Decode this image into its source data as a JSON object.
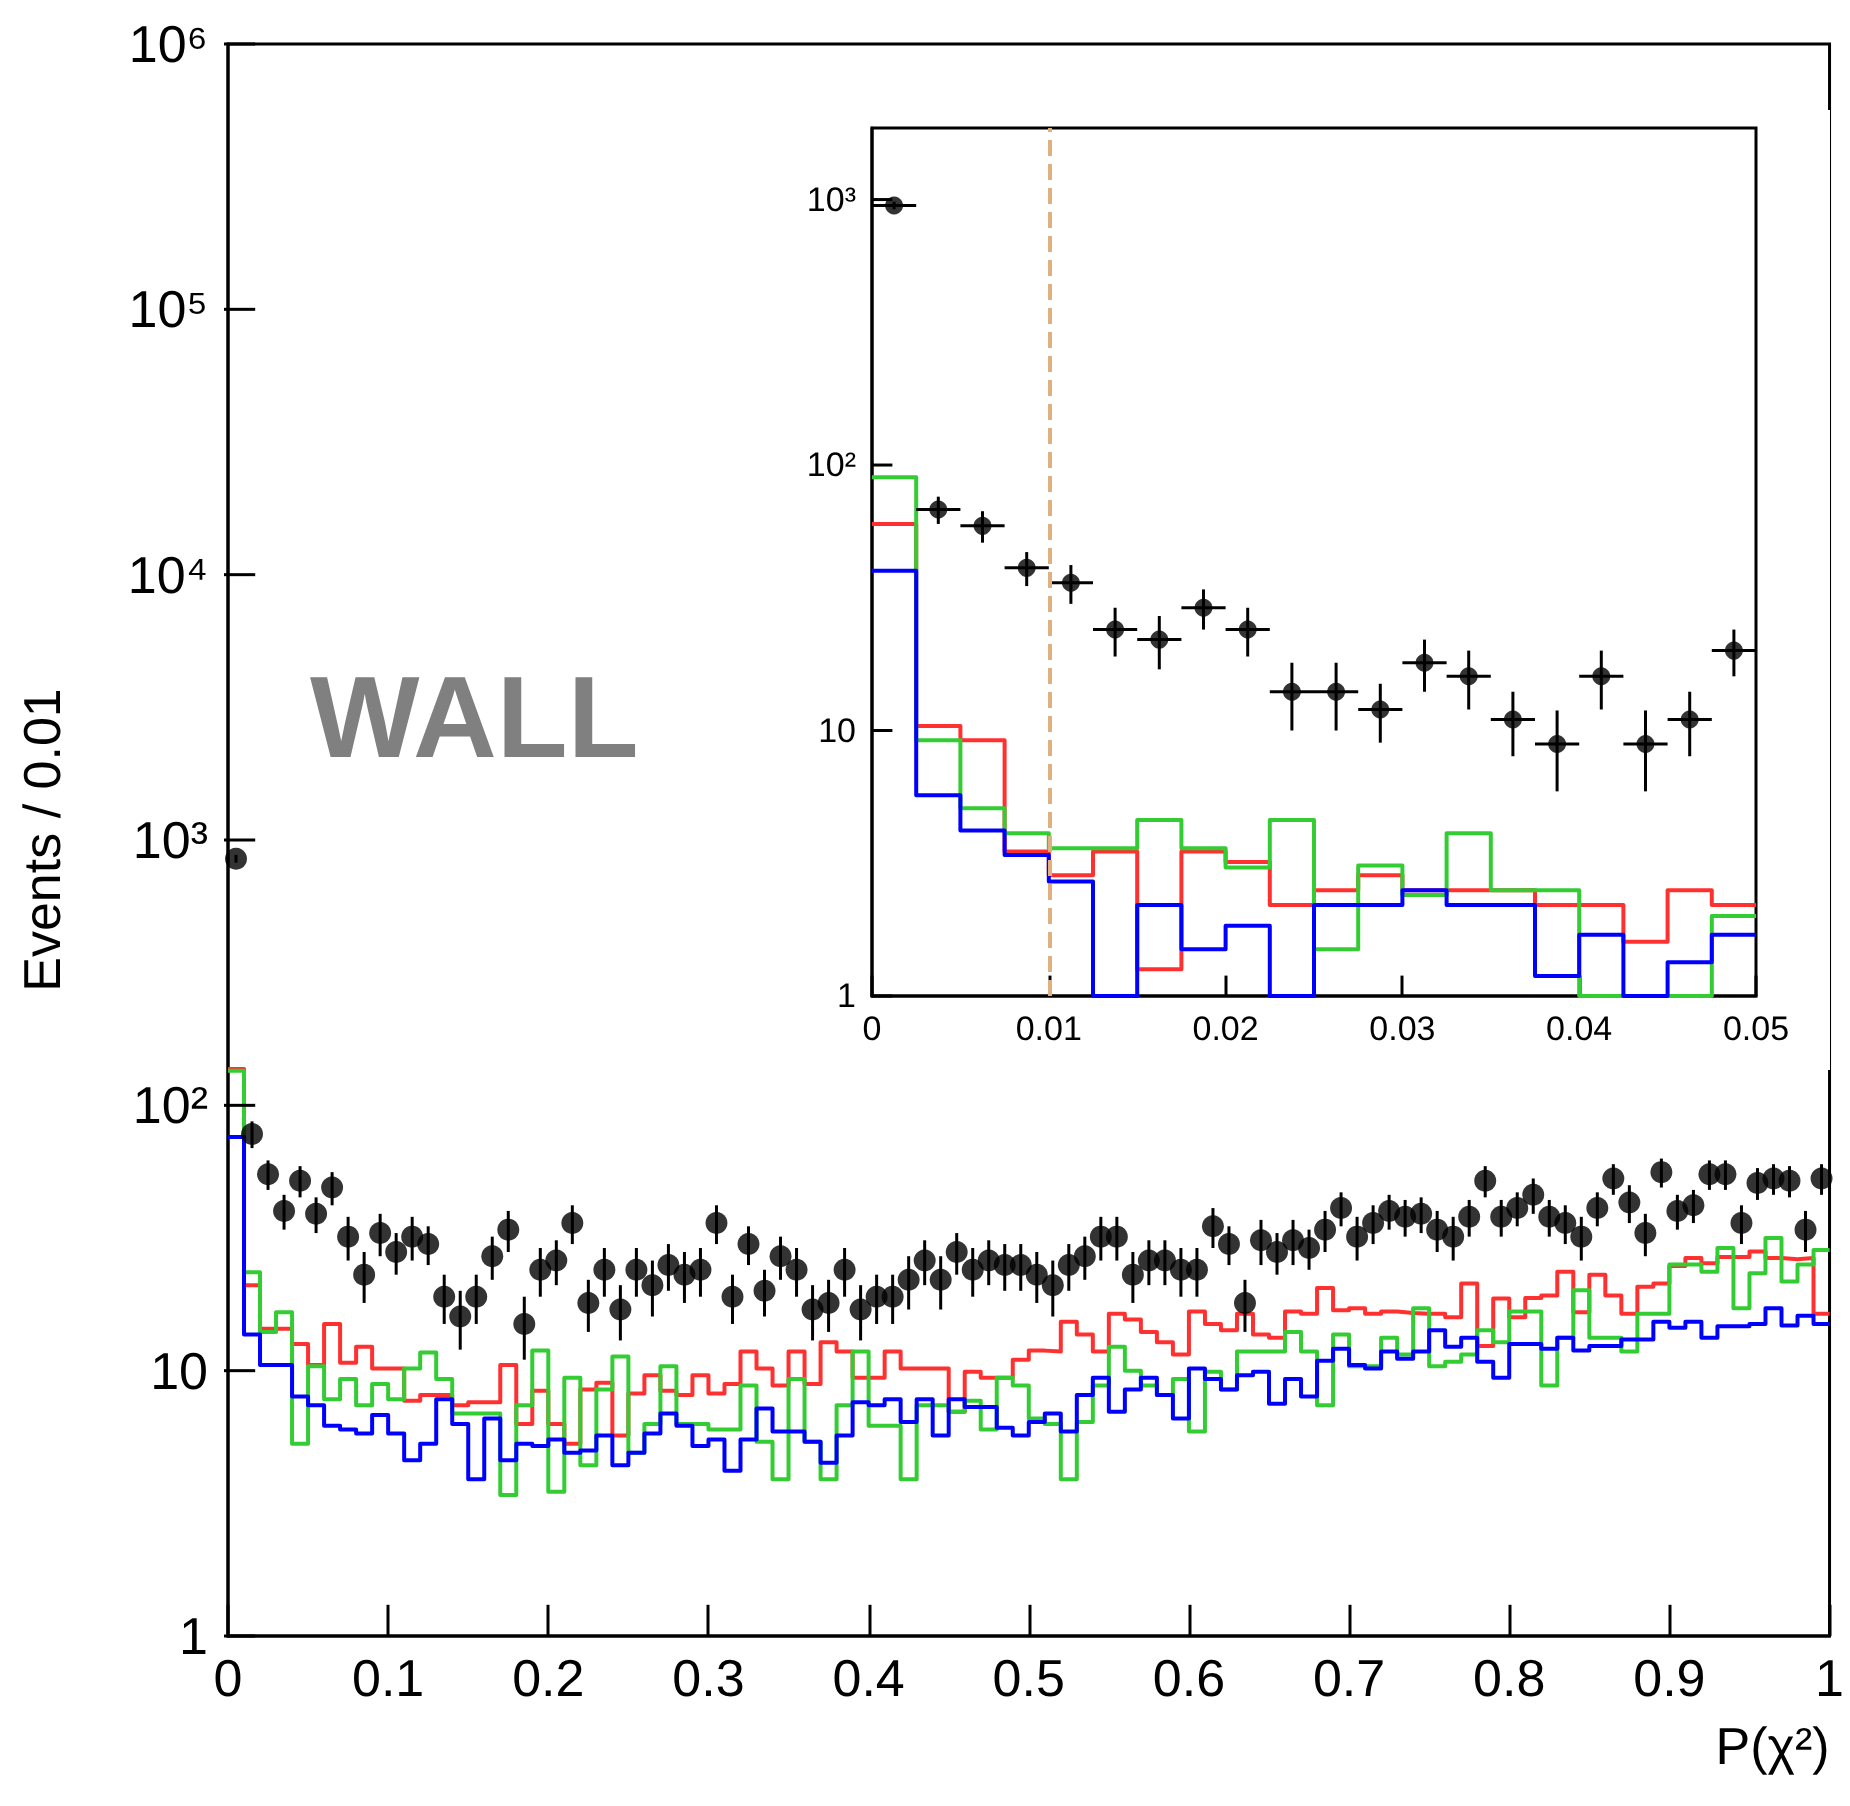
{
  "chart_data": [
    {
      "type": "histogram",
      "xlabel": "P(χ²)",
      "ylabel": "Events / 0.01",
      "log": "y",
      "annotations": [
        "WALL"
      ],
      "xlim": [
        0,
        1
      ],
      "xticks": [
        0,
        0.1,
        0.2,
        0.3,
        0.4,
        0.5,
        0.6,
        0.7,
        0.8,
        0.9,
        1
      ],
      "ylim": [
        1,
        1000000
      ],
      "yticks": [
        {
          "value": 1,
          "label": "1"
        },
        {
          "value": 10,
          "label": "10"
        },
        {
          "value": 100,
          "label": "10²"
        },
        {
          "value": 1000,
          "label": "10³"
        },
        {
          "value": 10000,
          "label": "10⁴"
        },
        {
          "value": 100000,
          "label": "10⁵"
        },
        {
          "value": 1000000,
          "label": "10⁶"
        }
      ],
      "bins": [
        0,
        0.01,
        0.02,
        0.03,
        0.04,
        0.05,
        0.06,
        0.07,
        0.08,
        0.09,
        0.1,
        0.11,
        0.12,
        0.13,
        0.14,
        0.15,
        0.16,
        0.17,
        0.18,
        0.19,
        0.2,
        0.21,
        0.22,
        0.23,
        0.24,
        0.25,
        0.26,
        0.27,
        0.28,
        0.29,
        0.3,
        0.31,
        0.32,
        0.33,
        0.34,
        0.35,
        0.36,
        0.37,
        0.38,
        0.39,
        0.4,
        0.41,
        0.42,
        0.43,
        0.44,
        0.45,
        0.46,
        0.47,
        0.48,
        0.49,
        0.5,
        0.51,
        0.52,
        0.53,
        0.54,
        0.55,
        0.56,
        0.57,
        0.58,
        0.59,
        0.6,
        0.61,
        0.62,
        0.63,
        0.64,
        0.65,
        0.66,
        0.67,
        0.68,
        0.69,
        0.7,
        0.71,
        0.72,
        0.73,
        0.74,
        0.75,
        0.76,
        0.77,
        0.78,
        0.79,
        0.8,
        0.81,
        0.82,
        0.83,
        0.84,
        0.85,
        0.86,
        0.87,
        0.88,
        0.89,
        0.9,
        0.91,
        0.92,
        0.93,
        0.94,
        0.95,
        0.96,
        0.97,
        0.98,
        0.99,
        1
      ],
      "series": [
        {
          "color": "#ff3030",
          "values": [
            137,
            21,
            14.4,
            14.4,
            12.6,
            10.5,
            15,
            10.7,
            12.3,
            10.2,
            10.2,
            7.7,
            8.1,
            8.1,
            7.4,
            7.6,
            7.6,
            10.5,
            6.3,
            8.4,
            6.3,
            5.3,
            8.5,
            9.0,
            5.7,
            8.2,
            9.6,
            8.4,
            8.1,
            9.6,
            8.2,
            8.9,
            11.8,
            10.2,
            8.8,
            11.8,
            8.9,
            12.8,
            11.8,
            9.4,
            9.4,
            11.8,
            10.2,
            10.2,
            10.2,
            7.0,
            9.9,
            9.4,
            9.4,
            11.0,
            11.9,
            11.8,
            15.3,
            13.7,
            11.8,
            16.4,
            15.6,
            14.0,
            12.8,
            11.5,
            16.7,
            15.0,
            14.2,
            16.4,
            13.7,
            13.3,
            16.7,
            16.4,
            20.5,
            16.9,
            17.2,
            16.4,
            16.7,
            16.5,
            16.4,
            16.4,
            15.9,
            21.3,
            12.4,
            18.7,
            15.9,
            18.8,
            19.2,
            23.6,
            16.6,
            23.0,
            19.2,
            16.4,
            20.7,
            21.3,
            24.8,
            26.6,
            25.4,
            26.8,
            26.8,
            28.1,
            26.6,
            26.3,
            26.6,
            16.4
          ]
        },
        {
          "color": "#33cc33",
          "values": [
            135,
            23.5,
            14,
            16.6,
            5.3,
            10.4,
            7.8,
            9.3,
            7.4,
            8.9,
            7.8,
            10.2,
            11.7,
            9.3,
            6.9,
            6.9,
            6.9,
            3.4,
            7.4,
            11.9,
            3.5,
            9.4,
            4.4,
            8.5,
            11.3,
            4.9,
            6.3,
            10.4,
            6.3,
            6.3,
            6.0,
            6.0,
            8.8,
            5.4,
            3.9,
            9.3,
            5.4,
            3.9,
            7.4,
            11.8,
            6.2,
            6.2,
            3.9,
            7.4,
            7.4,
            7.0,
            7.7,
            6.0,
            9.4,
            8.8,
            6.6,
            6.3,
            3.9,
            6.4,
            8.8,
            12.3,
            10.0,
            8.8,
            8.1,
            9.3,
            5.9,
            9.9,
            8.5,
            11.8,
            11.8,
            11.8,
            14.0,
            11.8,
            7.4,
            13.7,
            10.4,
            10.4,
            13.3,
            11.5,
            17.2,
            10.4,
            10.8,
            11.5,
            14.2,
            12.8,
            16.7,
            16.7,
            8.8,
            13.3,
            20.1,
            13.3,
            13.3,
            11.8,
            16.4,
            16.4,
            25.1,
            25.1,
            23.6,
            29,
            17.2,
            23.3,
            31.6,
            21.7,
            25.1,
            28.5
          ]
        },
        {
          "color": "#0000ff",
          "values": [
            76,
            13.7,
            10.5,
            10.5,
            8,
            7.4,
            6.2,
            6.0,
            5.8,
            6.8,
            5.8,
            4.6,
            5.3,
            7.8,
            6.3,
            3.9,
            6.6,
            4.6,
            5.3,
            5.2,
            5.5,
            4.9,
            5.0,
            5.7,
            4.4,
            4.9,
            5.8,
            6.9,
            6.2,
            5.2,
            5.5,
            4.2,
            5.5,
            7.2,
            5.9,
            5.9,
            5.4,
            4.5,
            5.7,
            7.6,
            7.4,
            7.8,
            6.4,
            7.8,
            5.7,
            7.8,
            7.3,
            7.3,
            6.1,
            5.7,
            6.4,
            6.9,
            5.9,
            8.1,
            9.4,
            7.0,
            8.5,
            9.4,
            8.1,
            6.6,
            10.2,
            9.3,
            8.5,
            9.6,
            9.9,
            7.5,
            9.3,
            8.0,
            10.9,
            12.1,
            10.5,
            10.2,
            11.8,
            11.1,
            11.8,
            14.2,
            12.3,
            13.3,
            10.8,
            9.4,
            12.6,
            12.6,
            12.1,
            13.3,
            11.9,
            12.4,
            12.4,
            13.1,
            13.1,
            15.3,
            14.5,
            15.3,
            13.3,
            14.7,
            14.7,
            15.0,
            17.2,
            14.8,
            16.1,
            15.0
          ]
        },
        {
          "type": "scatter",
          "color": "#000000",
          "marker": "circle",
          "x": [
            0.005,
            0.015,
            0.025,
            0.035,
            0.045,
            0.055,
            0.065,
            0.075,
            0.085,
            0.095,
            0.105,
            0.115,
            0.125,
            0.135,
            0.145,
            0.155,
            0.165,
            0.175,
            0.185,
            0.195,
            0.205,
            0.215,
            0.225,
            0.235,
            0.245,
            0.255,
            0.265,
            0.275,
            0.285,
            0.295,
            0.305,
            0.315,
            0.325,
            0.335,
            0.345,
            0.355,
            0.365,
            0.375,
            0.385,
            0.395,
            0.405,
            0.415,
            0.425,
            0.435,
            0.445,
            0.455,
            0.465,
            0.475,
            0.485,
            0.495,
            0.505,
            0.515,
            0.525,
            0.535,
            0.545,
            0.555,
            0.565,
            0.575,
            0.585,
            0.595,
            0.605,
            0.615,
            0.625,
            0.635,
            0.645,
            0.655,
            0.665,
            0.675,
            0.685,
            0.695,
            0.705,
            0.715,
            0.725,
            0.735,
            0.745,
            0.755,
            0.765,
            0.775,
            0.785,
            0.795,
            0.805,
            0.815,
            0.825,
            0.835,
            0.845,
            0.855,
            0.865,
            0.875,
            0.885,
            0.895,
            0.905,
            0.915,
            0.925,
            0.935,
            0.945,
            0.955,
            0.965,
            0.975,
            0.985,
            0.995
          ],
          "values": [
            850,
            78,
            55,
            40,
            52,
            39,
            49,
            32,
            23,
            33,
            28,
            32,
            30,
            19,
            16,
            19,
            27,
            34,
            15,
            24,
            26,
            36,
            18,
            24,
            17,
            24,
            21,
            25,
            23,
            24,
            36,
            19,
            30,
            20,
            27,
            24,
            17,
            18,
            24,
            17,
            19,
            19,
            22,
            26,
            22,
            28,
            24,
            26,
            25,
            25,
            23,
            21,
            25,
            27,
            32,
            32,
            23,
            26,
            26,
            24,
            24,
            35,
            30,
            18,
            31,
            28,
            31,
            29,
            34,
            41,
            32,
            36,
            40,
            38,
            39,
            34,
            32,
            38,
            52,
            38,
            41,
            46,
            38,
            36,
            32,
            41,
            53,
            43,
            33,
            56,
            40,
            42,
            55,
            55,
            36,
            51,
            53,
            52,
            34,
            53
          ],
          "errors": [
            29,
            9,
            7,
            6,
            7,
            6,
            7,
            6,
            5,
            6,
            5,
            6,
            5,
            4,
            4,
            4,
            5,
            6,
            4,
            5,
            5,
            6,
            4,
            5,
            4,
            5,
            5,
            5,
            5,
            5,
            6,
            4,
            5,
            4,
            5,
            5,
            4,
            4,
            5,
            4,
            4,
            4,
            5,
            5,
            5,
            5,
            5,
            5,
            5,
            5,
            5,
            5,
            5,
            5,
            6,
            6,
            5,
            5,
            5,
            5,
            5,
            6,
            5,
            4,
            6,
            5,
            6,
            5,
            6,
            6,
            6,
            6,
            6,
            6,
            6,
            6,
            6,
            6,
            7,
            6,
            6,
            7,
            6,
            6,
            6,
            6,
            7,
            7,
            6,
            7,
            6,
            6,
            7,
            7,
            6,
            7,
            7,
            7,
            6,
            7
          ]
        }
      ]
    },
    {
      "type": "histogram",
      "log": "y",
      "xlim": [
        0,
        0.05
      ],
      "xticks": [
        0,
        0.01,
        0.02,
        0.03,
        0.04,
        0.05
      ],
      "ylim": [
        1,
        1860
      ],
      "yticks": [
        {
          "value": 1,
          "label": "1"
        },
        {
          "value": 10,
          "label": "10"
        },
        {
          "value": 100,
          "label": "10²"
        },
        {
          "value": 1000,
          "label": "10³"
        }
      ],
      "ref_lines": [
        {
          "axis": "x",
          "value": 0.01,
          "color": "#e0b080",
          "line_style": "dashed"
        }
      ],
      "bins": [
        0,
        0.0025,
        0.005,
        0.0075,
        0.01,
        0.0125,
        0.015,
        0.0175,
        0.02,
        0.0225,
        0.025,
        0.0275,
        0.03,
        0.0325,
        0.035,
        0.0375,
        0.04,
        0.0425,
        0.045,
        0.0475,
        0.05
      ],
      "series": [
        {
          "color": "#ff3030",
          "values": [
            60,
            10.4,
            9.2,
            3.5,
            2.85,
            3.5,
            1.26,
            3.5,
            3.2,
            2.2,
            2.5,
            2.85,
            2.5,
            2.5,
            2.5,
            2.2,
            2.2,
            1.6,
            2.5,
            2.2
          ]
        },
        {
          "color": "#33cc33",
          "values": [
            90,
            9.2,
            5.1,
            4.1,
            3.6,
            3.6,
            4.6,
            3.6,
            3.05,
            4.6,
            1.5,
            3.1,
            2.4,
            4.1,
            2.5,
            2.5,
            1,
            1,
            1,
            2.0
          ]
        },
        {
          "color": "#0000ff",
          "values": [
            40,
            5.7,
            4.2,
            3.4,
            2.7,
            1,
            2.2,
            1.5,
            1.84,
            1,
            2.2,
            2.2,
            2.5,
            2.2,
            2.2,
            1.19,
            1.7,
            1,
            1.34,
            1.7
          ]
        },
        {
          "type": "scatter",
          "color": "#000000",
          "marker": "circle",
          "x": [
            0.00125,
            0.00375,
            0.00625,
            0.00875,
            0.01125,
            0.01375,
            0.01625,
            0.01875,
            0.02125,
            0.02375,
            0.02625,
            0.02875,
            0.03125,
            0.03375,
            0.03625,
            0.03875,
            0.04125,
            0.04375,
            0.04625,
            0.04875
          ],
          "values": [
            950,
            68,
            59,
            41,
            36,
            24,
            22,
            29,
            24,
            14,
            14,
            12,
            18,
            16,
            11,
            8.9,
            16,
            8.9,
            11,
            20
          ],
          "errors": [
            31,
            8,
            8,
            6,
            6,
            5,
            5,
            5,
            5,
            4,
            4,
            3,
            4,
            4,
            3,
            3,
            4,
            3,
            3,
            4
          ],
          "xerrors": [
            0.00125,
            0.00125,
            0.00125,
            0.00125,
            0.00125,
            0.00125,
            0.00125,
            0.00125,
            0.00125,
            0.00125,
            0.00125,
            0.00125,
            0.00125,
            0.00125,
            0.00125,
            0.00125,
            0.00125,
            0.00125,
            0.00125,
            0.00125
          ]
        }
      ]
    }
  ]
}
